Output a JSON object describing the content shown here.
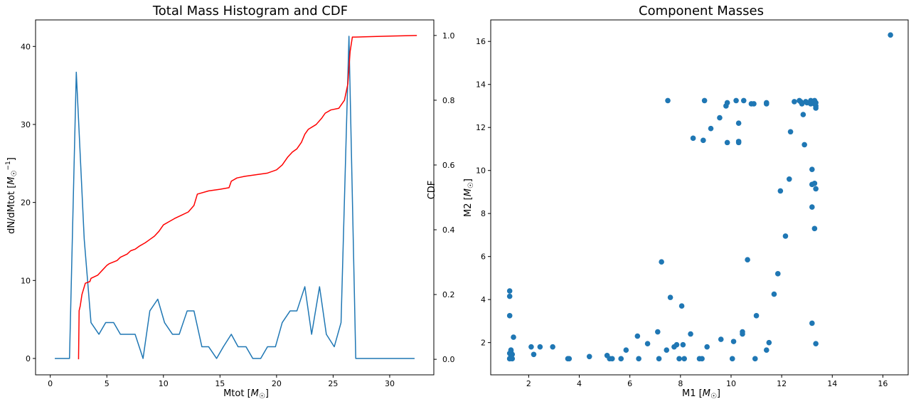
{
  "chart_data": [
    {
      "type": "line",
      "title": "Total Mass Histogram and CDF",
      "xlabel": "Mtot [M_⊙]",
      "ylabel": "dN/dMtot [M_⊙^-1]",
      "y2label": "CDF",
      "xlim": [
        -1.3,
        33.9
      ],
      "ylim": [
        -2.1,
        43.4
      ],
      "y2lim": [
        -0.048,
        1.048
      ],
      "xticks": [
        0,
        5,
        10,
        15,
        20,
        25,
        30
      ],
      "yticks": [
        0,
        10,
        20,
        30,
        40
      ],
      "y2ticks": [
        "0.0",
        "0.2",
        "0.4",
        "0.6",
        "0.8",
        "1.0"
      ],
      "grid": false,
      "series": [
        {
          "axis": "left",
          "color": "#1f77b4",
          "x": [
            0.4,
            1.0,
            1.7,
            2.3,
            3.0,
            3.6,
            4.3,
            4.9,
            5.6,
            6.2,
            6.9,
            7.5,
            8.2,
            8.8,
            9.5,
            10.1,
            10.8,
            11.4,
            12.1,
            12.7,
            13.4,
            14.0,
            14.7,
            15.3,
            16.0,
            16.6,
            17.3,
            17.9,
            18.6,
            19.2,
            19.9,
            20.5,
            21.2,
            21.8,
            22.5,
            23.1,
            23.8,
            24.4,
            25.1,
            25.7,
            26.4,
            27.0,
            27.7,
            28.3,
            29.0,
            29.6,
            30.3,
            30.9,
            31.6,
            32.2
          ],
          "values": [
            0,
            0,
            0,
            36.7,
            15.3,
            4.6,
            3.1,
            4.6,
            4.6,
            3.1,
            3.1,
            3.1,
            0,
            6.1,
            7.6,
            4.6,
            3.1,
            3.1,
            6.1,
            6.1,
            1.5,
            1.5,
            0,
            1.5,
            3.1,
            1.5,
            1.5,
            0,
            0,
            1.5,
            1.5,
            4.6,
            6.1,
            6.1,
            9.2,
            3.1,
            9.2,
            3.1,
            1.5,
            4.6,
            41.3,
            0,
            0,
            0,
            0,
            0,
            0,
            0,
            0,
            0
          ]
        },
        {
          "axis": "right",
          "color": "#ff0000",
          "x": [
            2.5,
            2.55,
            2.65,
            2.8,
            3.1,
            3.5,
            3.6,
            4.2,
            4.6,
            5.0,
            5.2,
            5.9,
            6.2,
            6.8,
            7.1,
            7.5,
            7.9,
            8.4,
            8.8,
            9.2,
            9.6,
            10.0,
            10.5,
            11.0,
            11.6,
            12.2,
            12.7,
            13.0,
            14.0,
            15.0,
            15.8,
            16.0,
            16.5,
            17.2,
            18.2,
            19.2,
            20.0,
            20.5,
            21.0,
            21.4,
            21.8,
            22.2,
            22.5,
            22.8,
            23.5,
            24.0,
            24.3,
            24.8,
            25.5,
            26.0,
            26.3,
            26.5,
            26.7,
            27.0,
            30.0,
            32.4
          ],
          "values": [
            0.0,
            0.15,
            0.165,
            0.2,
            0.235,
            0.24,
            0.25,
            0.26,
            0.275,
            0.29,
            0.295,
            0.305,
            0.315,
            0.325,
            0.335,
            0.34,
            0.35,
            0.36,
            0.37,
            0.38,
            0.395,
            0.415,
            0.425,
            0.435,
            0.445,
            0.455,
            0.475,
            0.51,
            0.52,
            0.525,
            0.53,
            0.55,
            0.56,
            0.565,
            0.57,
            0.575,
            0.585,
            0.6,
            0.625,
            0.64,
            0.65,
            0.67,
            0.695,
            0.71,
            0.725,
            0.745,
            0.76,
            0.77,
            0.775,
            0.8,
            0.85,
            0.95,
            0.995,
            0.995,
            0.998,
            1.0
          ]
        }
      ]
    },
    {
      "type": "scatter",
      "title": "Component Masses",
      "xlabel": "M1 [M_⊙]",
      "ylabel": "M2 [M_⊙]",
      "xlim": [
        0.5,
        17.0
      ],
      "ylim": [
        0.5,
        17.0
      ],
      "xticks": [
        2,
        4,
        6,
        8,
        10,
        12,
        14,
        16
      ],
      "yticks": [
        2,
        4,
        6,
        8,
        10,
        12,
        14,
        16
      ],
      "grid": false,
      "color": "#1f77b4",
      "points": [
        [
          1.25,
          4.4
        ],
        [
          1.25,
          4.15
        ],
        [
          1.25,
          3.25
        ],
        [
          1.3,
          1.65
        ],
        [
          1.3,
          1.55
        ],
        [
          1.35,
          1.45
        ],
        [
          1.25,
          1.5
        ],
        [
          1.3,
          1.35
        ],
        [
          1.25,
          1.25
        ],
        [
          1.35,
          1.25
        ],
        [
          1.3,
          1.65
        ],
        [
          1.4,
          2.25
        ],
        [
          1.25,
          1.25
        ],
        [
          2.1,
          1.8
        ],
        [
          2.2,
          1.45
        ],
        [
          2.45,
          1.8
        ],
        [
          2.95,
          1.8
        ],
        [
          3.55,
          1.25
        ],
        [
          3.6,
          1.25
        ],
        [
          4.4,
          1.35
        ],
        [
          5.1,
          1.4
        ],
        [
          5.2,
          1.25
        ],
        [
          5.3,
          1.25
        ],
        [
          5.65,
          1.25
        ],
        [
          5.85,
          1.65
        ],
        [
          6.3,
          2.3
        ],
        [
          6.35,
          1.25
        ],
        [
          6.7,
          1.95
        ],
        [
          7.1,
          2.5
        ],
        [
          7.15,
          1.25
        ],
        [
          7.25,
          5.75
        ],
        [
          7.45,
          1.65
        ],
        [
          7.5,
          13.25
        ],
        [
          7.6,
          4.1
        ],
        [
          7.75,
          1.8
        ],
        [
          7.85,
          1.9
        ],
        [
          7.95,
          1.25
        ],
        [
          8.05,
          3.7
        ],
        [
          8.1,
          1.9
        ],
        [
          8.15,
          1.25
        ],
        [
          8.4,
          2.4
        ],
        [
          8.5,
          11.5
        ],
        [
          8.75,
          1.25
        ],
        [
          8.85,
          1.25
        ],
        [
          8.9,
          11.4
        ],
        [
          8.95,
          13.25
        ],
        [
          9.05,
          1.8
        ],
        [
          9.2,
          11.95
        ],
        [
          9.55,
          12.45
        ],
        [
          9.6,
          2.15
        ],
        [
          9.8,
          13.0
        ],
        [
          9.85,
          13.15
        ],
        [
          9.85,
          11.3
        ],
        [
          10.05,
          1.25
        ],
        [
          10.1,
          2.05
        ],
        [
          10.2,
          13.25
        ],
        [
          10.3,
          11.3
        ],
        [
          10.3,
          11.35
        ],
        [
          10.3,
          12.2
        ],
        [
          10.45,
          2.4
        ],
        [
          10.45,
          2.5
        ],
        [
          10.5,
          13.25
        ],
        [
          10.65,
          5.85
        ],
        [
          10.8,
          13.1
        ],
        [
          10.9,
          13.1
        ],
        [
          10.95,
          1.25
        ],
        [
          11.0,
          3.25
        ],
        [
          11.4,
          13.15
        ],
        [
          11.4,
          13.1
        ],
        [
          11.4,
          1.65
        ],
        [
          11.5,
          2.0
        ],
        [
          11.7,
          4.25
        ],
        [
          11.85,
          5.2
        ],
        [
          11.95,
          9.05
        ],
        [
          12.15,
          6.95
        ],
        [
          12.3,
          9.6
        ],
        [
          12.35,
          11.8
        ],
        [
          12.5,
          13.2
        ],
        [
          12.7,
          13.25
        ],
        [
          12.75,
          13.2
        ],
        [
          12.8,
          13.1
        ],
        [
          12.85,
          12.6
        ],
        [
          12.9,
          11.2
        ],
        [
          12.95,
          13.2
        ],
        [
          13.0,
          13.15
        ],
        [
          13.15,
          13.25
        ],
        [
          13.15,
          13.1
        ],
        [
          13.2,
          10.05
        ],
        [
          13.2,
          9.35
        ],
        [
          13.2,
          8.3
        ],
        [
          13.2,
          2.9
        ],
        [
          13.25,
          13.2
        ],
        [
          13.3,
          13.25
        ],
        [
          13.3,
          13.1
        ],
        [
          13.3,
          9.4
        ],
        [
          13.3,
          7.3
        ],
        [
          13.35,
          13.0
        ],
        [
          13.35,
          12.9
        ],
        [
          13.35,
          13.15
        ],
        [
          13.35,
          9.15
        ],
        [
          13.35,
          1.95
        ],
        [
          16.3,
          16.3
        ]
      ]
    }
  ]
}
